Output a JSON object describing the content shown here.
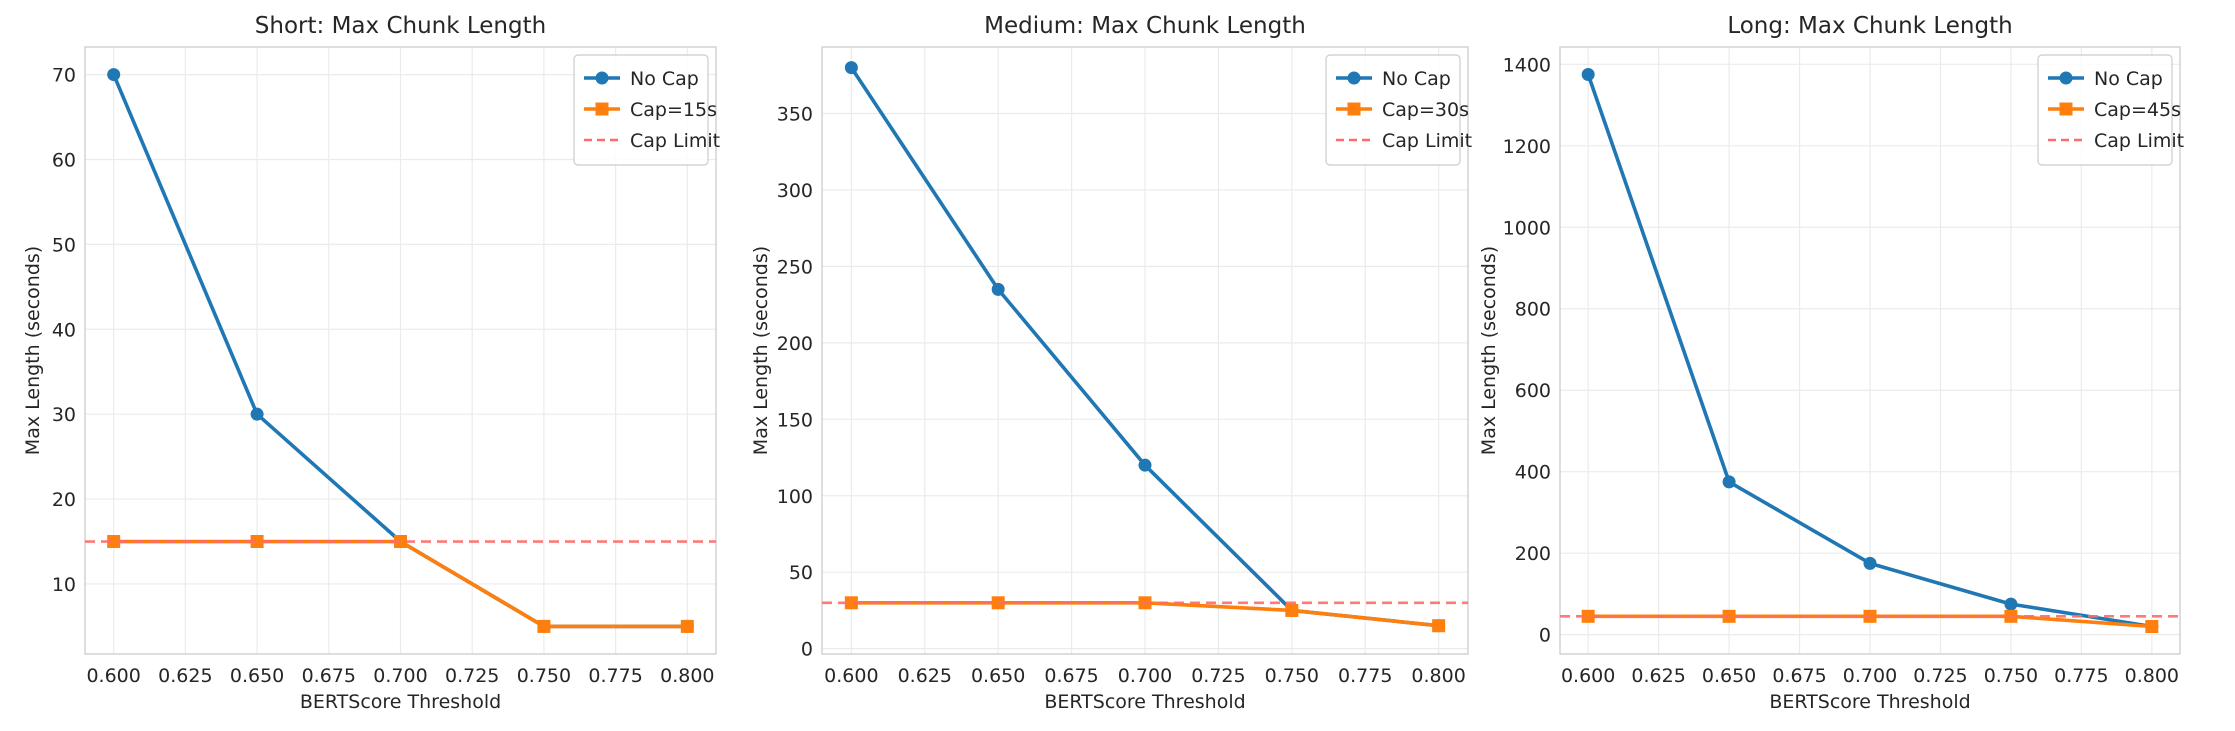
{
  "chart_data": [
    {
      "type": "line",
      "title": "Short: Max Chunk Length",
      "xlabel": "BERTScore Threshold",
      "ylabel": "Max Length (seconds)",
      "x": [
        0.6,
        0.65,
        0.7,
        0.75,
        0.8
      ],
      "xlim": [
        0.59,
        0.81
      ],
      "ylim": [
        1.75,
        73.25
      ],
      "xticks": [
        "0.600",
        "0.625",
        "0.650",
        "0.675",
        "0.700",
        "0.725",
        "0.750",
        "0.775",
        "0.800"
      ],
      "yticks": [
        10,
        20,
        30,
        40,
        50,
        60,
        70
      ],
      "grid": true,
      "legend_position": "top-right",
      "series": [
        {
          "name": "No Cap",
          "values": [
            70,
            30,
            15,
            5,
            5
          ],
          "color": "#1f77b4",
          "marker": "circle"
        },
        {
          "name": "Cap=15s",
          "values": [
            15,
            15,
            15,
            5,
            5
          ],
          "color": "#ff7f0e",
          "marker": "square"
        }
      ],
      "reference_line": {
        "name": "Cap Limit",
        "y": 15,
        "color": "#ff6b6b",
        "style": "dashed"
      }
    },
    {
      "type": "line",
      "title": "Medium: Max Chunk Length",
      "xlabel": "BERTScore Threshold",
      "ylabel": "Max Length (seconds)",
      "x": [
        0.6,
        0.65,
        0.7,
        0.75,
        0.8
      ],
      "xlim": [
        0.59,
        0.81
      ],
      "ylim": [
        -3.5,
        393.5
      ],
      "xticks": [
        "0.600",
        "0.625",
        "0.650",
        "0.675",
        "0.700",
        "0.725",
        "0.750",
        "0.775",
        "0.800"
      ],
      "yticks": [
        0,
        50,
        100,
        150,
        200,
        250,
        300,
        350
      ],
      "grid": true,
      "legend_position": "top-right",
      "series": [
        {
          "name": "No Cap",
          "values": [
            380,
            235,
            120,
            25,
            15
          ],
          "color": "#1f77b4",
          "marker": "circle"
        },
        {
          "name": "Cap=30s",
          "values": [
            30,
            30,
            30,
            25,
            15
          ],
          "color": "#ff7f0e",
          "marker": "square"
        }
      ],
      "reference_line": {
        "name": "Cap Limit",
        "y": 30,
        "color": "#ff6b6b",
        "style": "dashed"
      }
    },
    {
      "type": "line",
      "title": "Long: Max Chunk Length",
      "xlabel": "BERTScore Threshold",
      "ylabel": "Max Length (seconds)",
      "x": [
        0.6,
        0.65,
        0.7,
        0.75,
        0.8
      ],
      "xlim": [
        0.59,
        0.81
      ],
      "ylim": [
        -47.5,
        1442.5
      ],
      "xticks": [
        "0.600",
        "0.625",
        "0.650",
        "0.675",
        "0.700",
        "0.725",
        "0.750",
        "0.775",
        "0.800"
      ],
      "yticks": [
        0,
        200,
        400,
        600,
        800,
        1000,
        1200,
        1400
      ],
      "grid": true,
      "legend_position": "top-right",
      "series": [
        {
          "name": "No Cap",
          "values": [
            1375,
            375,
            175,
            75,
            20
          ],
          "color": "#1f77b4",
          "marker": "circle"
        },
        {
          "name": "Cap=45s",
          "values": [
            45,
            45,
            45,
            45,
            20
          ],
          "color": "#ff7f0e",
          "marker": "square"
        }
      ],
      "reference_line": {
        "name": "Cap Limit",
        "y": 45,
        "color": "#ff6b6b",
        "style": "dashed"
      }
    }
  ]
}
